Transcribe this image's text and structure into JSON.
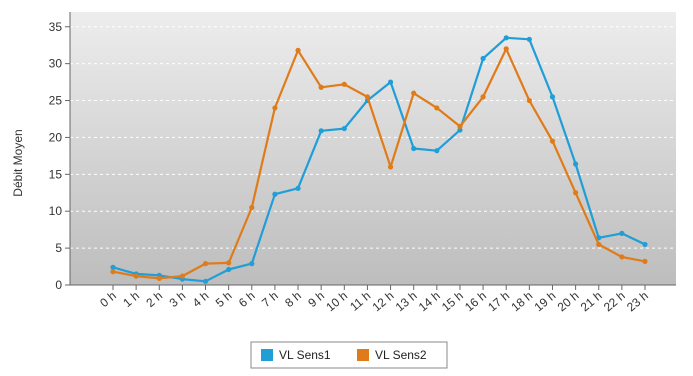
{
  "chart_data": {
    "type": "line",
    "title": "",
    "xlabel": "",
    "ylabel": "Débit Moyen",
    "ylim": [
      0,
      37
    ],
    "yticks": [
      0,
      5,
      10,
      15,
      20,
      25,
      30,
      35
    ],
    "grid": true,
    "legend_position": "bottom-center",
    "categories": [
      "0 h",
      "1 h",
      "2 h",
      "3 h",
      "4 h",
      "5 h",
      "6 h",
      "7 h",
      "8 h",
      "9 h",
      "10 h",
      "11 h",
      "12 h",
      "13 h",
      "14 h",
      "15 h",
      "16 h",
      "17 h",
      "18 h",
      "19 h",
      "20 h",
      "21 h",
      "22 h",
      "23 h"
    ],
    "series": [
      {
        "name": "VL Sens1",
        "color": "#1f9ed8",
        "values": [
          2.4,
          1.5,
          1.3,
          0.8,
          0.5,
          2.1,
          2.9,
          12.3,
          13.1,
          20.9,
          21.2,
          25.0,
          27.5,
          18.5,
          18.2,
          21.0,
          30.7,
          33.5,
          33.3,
          25.5,
          16.4,
          6.4,
          7.0,
          5.5
        ]
      },
      {
        "name": "VL Sens2",
        "color": "#e07b1a",
        "values": [
          1.8,
          1.2,
          0.9,
          1.2,
          2.9,
          3.0,
          10.5,
          24.0,
          31.8,
          26.8,
          27.2,
          25.5,
          16.0,
          26.0,
          24.0,
          21.5,
          25.5,
          32.0,
          25.0,
          19.5,
          12.5,
          5.5,
          3.8,
          3.2
        ]
      }
    ]
  }
}
